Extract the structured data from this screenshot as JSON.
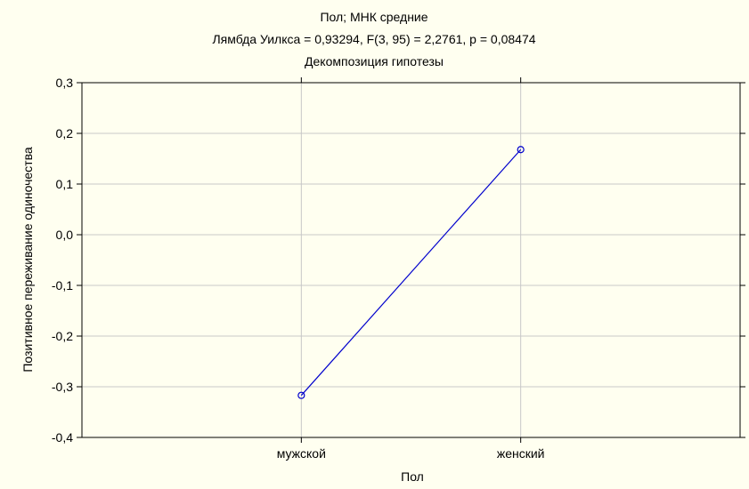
{
  "chart_data": {
    "type": "line",
    "title_lines": [
      "Пол; МНК средние",
      "Лямбда Уилкса = 0,93294, F(3, 95) = 2,2761, p = 0,08474",
      "Декомпозиция гипотезы"
    ],
    "xlabel": "Пол",
    "ylabel": "Позитивное переживание одиночества",
    "categories": [
      "мужской",
      "женский"
    ],
    "values": [
      -0.317,
      0.168
    ],
    "ylim": [
      -0.4,
      0.3
    ],
    "yticks": [
      -0.4,
      -0.3,
      -0.2,
      -0.1,
      0.0,
      0.1,
      0.2,
      0.3
    ],
    "ytick_labels": [
      "-0,4",
      "-0,3",
      "-0,2",
      "-0,1",
      "0,0",
      "0,1",
      "0,2",
      "0,3"
    ],
    "grid": true,
    "legend": "none",
    "line_color": "#0000cc",
    "grid_color": "#c8c8c8",
    "background": "#fffff0"
  }
}
